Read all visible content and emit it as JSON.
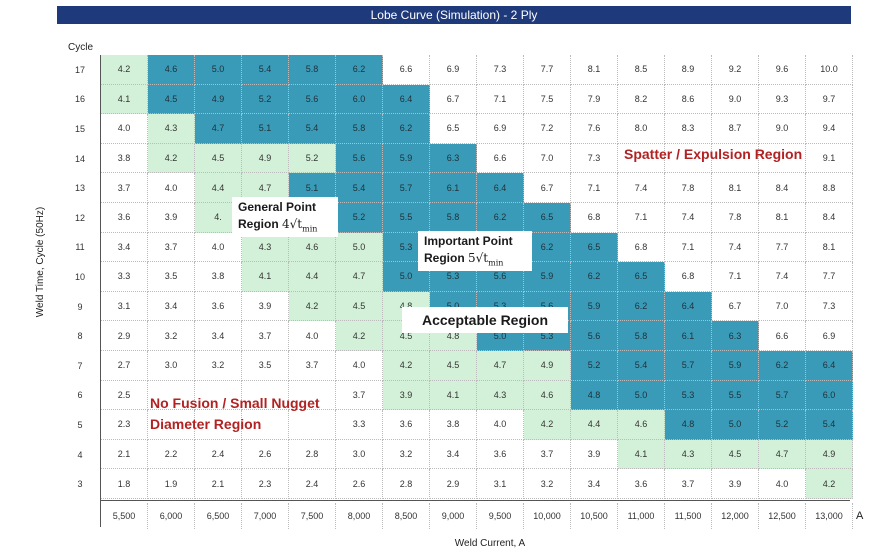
{
  "chart_data": {
    "type": "heatmap",
    "title": "Lobe Curve (Simulation) - 2 Ply",
    "xlabel": "Weld Current, A",
    "ylabel": "Weld Time, Cycle (50Hz)",
    "y_header": "Cycle",
    "x_unit": "A",
    "x": [
      "5,500",
      "6,000",
      "6,500",
      "7,000",
      "7,500",
      "8,000",
      "8,500",
      "9,000",
      "9,500",
      "10,000",
      "10,500",
      "11,000",
      "11,500",
      "12,000",
      "12,500",
      "13,000"
    ],
    "y": [
      "17",
      "16",
      "15",
      "14",
      "13",
      "12",
      "11",
      "10",
      "9",
      "8",
      "7",
      "6",
      "5",
      "4",
      "3"
    ],
    "values": [
      [
        "4.2",
        "4.6",
        "5.0",
        "5.4",
        "5.8",
        "6.2",
        "6.6",
        "6.9",
        "7.3",
        "7.7",
        "8.1",
        "8.5",
        "8.9",
        "9.2",
        "9.6",
        "10.0"
      ],
      [
        "4.1",
        "4.5",
        "4.9",
        "5.2",
        "5.6",
        "6.0",
        "6.4",
        "6.7",
        "7.1",
        "7.5",
        "7.9",
        "8.2",
        "8.6",
        "9.0",
        "9.3",
        "9.7"
      ],
      [
        "4.0",
        "4.3",
        "4.7",
        "5.1",
        "5.4",
        "5.8",
        "6.2",
        "6.5",
        "6.9",
        "7.2",
        "7.6",
        "8.0",
        "8.3",
        "8.7",
        "9.0",
        "9.4"
      ],
      [
        "3.8",
        "4.2",
        "4.5",
        "4.9",
        "5.2",
        "5.6",
        "5.9",
        "6.3",
        "6.6",
        "7.0",
        "7.3",
        "",
        "",
        "",
        "",
        "9.1"
      ],
      [
        "3.7",
        "4.0",
        "4.4",
        "4.7",
        "5.1",
        "5.4",
        "5.7",
        "6.1",
        "6.4",
        "6.7",
        "7.1",
        "7.4",
        "7.8",
        "8.1",
        "8.4",
        "8.8"
      ],
      [
        "3.6",
        "3.9",
        "4.",
        "",
        "",
        "5.2",
        "5.5",
        "5.8",
        "6.2",
        "6.5",
        "6.8",
        "7.1",
        "7.4",
        "7.8",
        "8.1",
        "8.4"
      ],
      [
        "3.4",
        "3.7",
        "4.0",
        "4.3",
        "4.6",
        "5.0",
        "5.3",
        "",
        "",
        "6.2",
        "6.5",
        "6.8",
        "7.1",
        "7.4",
        "7.7",
        "8.1"
      ],
      [
        "3.3",
        "3.5",
        "3.8",
        "4.1",
        "4.4",
        "4.7",
        "5.0",
        "5.3",
        "5.6",
        "5.9",
        "6.2",
        "6.5",
        "6.8",
        "7.1",
        "7.4",
        "7.7"
      ],
      [
        "3.1",
        "3.4",
        "3.6",
        "3.9",
        "4.2",
        "4.5",
        "4.8",
        "5.0",
        "5.3",
        "5.6",
        "5.9",
        "6.2",
        "6.4",
        "6.7",
        "7.0",
        "7.3"
      ],
      [
        "2.9",
        "3.2",
        "3.4",
        "3.7",
        "4.0",
        "4.2",
        "4.5",
        "4.8",
        "5.0",
        "5.3",
        "5.6",
        "5.8",
        "6.1",
        "6.3",
        "6.6",
        "6.9"
      ],
      [
        "2.7",
        "3.0",
        "3.2",
        "3.5",
        "3.7",
        "4.0",
        "4.2",
        "4.5",
        "4.7",
        "4.9",
        "5.2",
        "5.4",
        "5.7",
        "5.9",
        "6.2",
        "6.4"
      ],
      [
        "2.5",
        "",
        "",
        "",
        "",
        "3.7",
        "3.9",
        "4.1",
        "4.3",
        "4.6",
        "4.8",
        "5.0",
        "5.3",
        "5.5",
        "5.7",
        "6.0"
      ],
      [
        "2.3",
        "",
        "",
        "",
        "",
        "3.3",
        "3.6",
        "3.8",
        "4.0",
        "4.2",
        "4.4",
        "4.6",
        "4.8",
        "5.0",
        "5.2",
        "5.4"
      ],
      [
        "2.1",
        "2.2",
        "2.4",
        "2.6",
        "2.8",
        "3.0",
        "3.2",
        "3.4",
        "3.6",
        "3.7",
        "3.9",
        "4.1",
        "4.3",
        "4.5",
        "4.7",
        "4.9"
      ],
      [
        "1.8",
        "1.9",
        "2.1",
        "2.3",
        "2.4",
        "2.6",
        "2.8",
        "2.9",
        "3.1",
        "3.2",
        "3.4",
        "3.6",
        "3.7",
        "3.9",
        "4.0",
        "4.2"
      ]
    ],
    "zones": [
      "gbbbbbwwwwwwwwww",
      "gbbbbbbwwwwwwwww",
      "wgbbbbbwwwwwwwww",
      "wggggbbbwwwwwwww",
      "wwggbbbbbwwwwwww",
      "wwgggbbbbbwwwwww",
      "wwwgggbbbbbwwwww",
      "wwwgggbbbbbbwwww",
      "wwwwgggbbbbbbwww",
      "wwwwwgggbbbbbbww",
      "wwwwwwggggbbbbbb",
      "wwwwwwggggbbbbbb",
      "wwwwwwwwwgggbbbb",
      "wwwwwwwwwwwggggg",
      "wwwwwwwwwwwwwwwg"
    ],
    "zone_colors": {
      "w": "#ffffff",
      "g": "#d3f1d8",
      "b": "#3a9bb8"
    },
    "regions": {
      "spatter": "Spatter / Expulsion Region",
      "general_line1": "General Point",
      "general_line2": "Region",
      "general_formula": "4√t",
      "general_sub": "min",
      "important_line1": "Important Point",
      "important_line2": "Region",
      "important_formula": "5√t",
      "important_sub": "min",
      "acceptable": "Acceptable Region",
      "nofusion_line1": "No Fusion / Small Nugget",
      "nofusion_line2": "Diameter Region"
    },
    "region_colors": {
      "red": "#b22222"
    }
  }
}
